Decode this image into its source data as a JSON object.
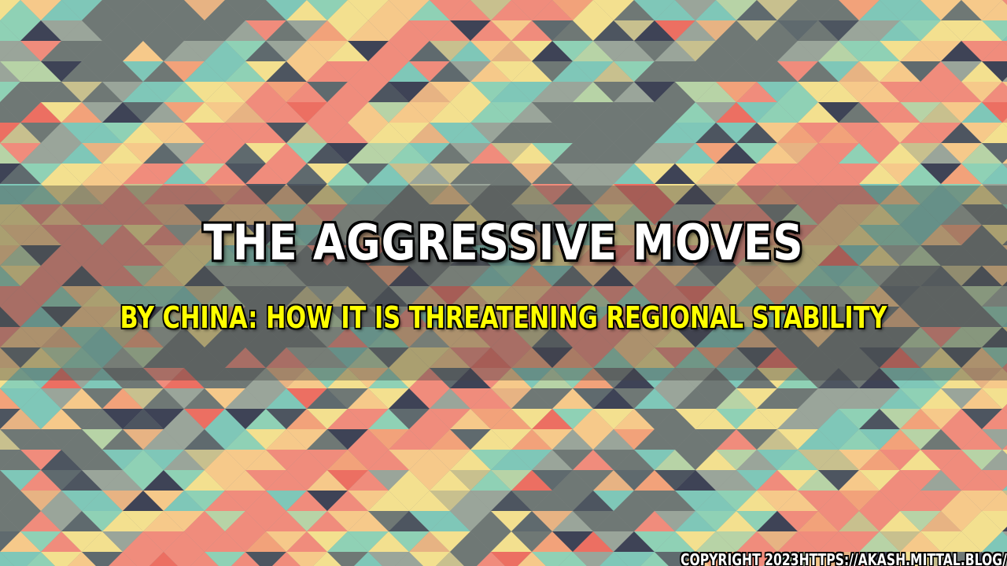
{
  "title": "THE AGGRESSIVE MOVES",
  "subtitle": "BY CHINA: HOW IT IS THREATENING REGIONAL STABILITY",
  "footer": "COPYRIGHT 2023HTTPS://AKASH.MITTAL.BLOG/",
  "palette": [
    "#f08c7c",
    "#f6c98a",
    "#f3e08f",
    "#8fd1b5",
    "#7fc7b8",
    "#9aa59a",
    "#6f7875",
    "#4d5560",
    "#3e4356",
    "#ec6f62",
    "#f2a27a",
    "#c8c08e",
    "#b7d3a6",
    "#5f6a6e",
    "#e7b383"
  ]
}
